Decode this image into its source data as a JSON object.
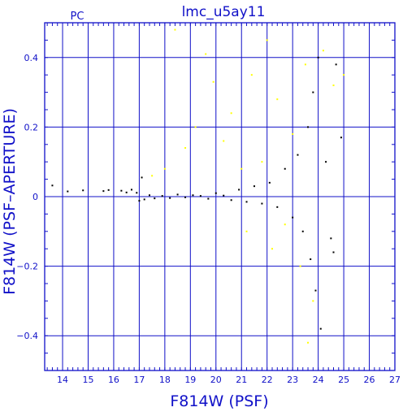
{
  "chart_data": {
    "type": "scatter",
    "title": "lmc_u5ay11",
    "corner_label": "PC",
    "xlabel": "F814W (PSF)",
    "ylabel": "F814W (PSF–APERTURE)",
    "xlim": [
      13.3,
      27
    ],
    "ylim": [
      -0.5,
      0.5
    ],
    "x_ticks": [
      "14",
      "15",
      "16",
      "17",
      "18",
      "19",
      "20",
      "21",
      "22",
      "23",
      "24",
      "25",
      "26",
      "27"
    ],
    "y_ticks": [
      "0.4",
      "0.2",
      "0",
      "−0.2",
      "−0.4"
    ],
    "grid": true,
    "colors": {
      "axes": "#1010c8",
      "black_points": "#000000",
      "yellow_points": "#ffff00"
    },
    "series": [
      {
        "color": "#000000",
        "points": [
          [
            13.6,
            0.032
          ],
          [
            14.2,
            0.015
          ],
          [
            14.8,
            0.018
          ],
          [
            15.6,
            0.016
          ],
          [
            15.8,
            0.019
          ],
          [
            16.3,
            0.017
          ],
          [
            16.5,
            0.012
          ],
          [
            16.7,
            0.02
          ],
          [
            16.9,
            0.011
          ],
          [
            17.0,
            -0.012
          ],
          [
            17.1,
            0.055
          ],
          [
            17.2,
            -0.008
          ],
          [
            17.4,
            0.004
          ],
          [
            17.6,
            -0.005
          ],
          [
            17.9,
            0.002
          ],
          [
            18.2,
            -0.004
          ],
          [
            18.5,
            0.006
          ],
          [
            18.8,
            -0.002
          ],
          [
            19.1,
            0.004
          ],
          [
            19.4,
            0.002
          ],
          [
            19.7,
            -0.006
          ],
          [
            20.0,
            0.01
          ],
          [
            20.3,
            0.003
          ],
          [
            20.6,
            -0.01
          ],
          [
            20.9,
            0.02
          ],
          [
            21.2,
            -0.015
          ],
          [
            21.5,
            0.03
          ],
          [
            21.8,
            -0.02
          ],
          [
            22.1,
            0.04
          ],
          [
            22.4,
            -0.03
          ],
          [
            22.7,
            0.08
          ],
          [
            23.0,
            -0.06
          ],
          [
            23.2,
            0.12
          ],
          [
            23.4,
            -0.1
          ],
          [
            23.6,
            0.2
          ],
          [
            23.7,
            -0.18
          ],
          [
            23.8,
            0.3
          ],
          [
            23.9,
            -0.27
          ],
          [
            24.0,
            0.4
          ],
          [
            24.1,
            -0.38
          ],
          [
            24.3,
            0.1
          ],
          [
            24.5,
            -0.12
          ],
          [
            24.7,
            0.38
          ],
          [
            24.9,
            0.17
          ],
          [
            24.6,
            -0.16
          ]
        ]
      },
      {
        "color": "#ffff00",
        "points": [
          [
            17.5,
            0.06
          ],
          [
            18.0,
            0.08
          ],
          [
            18.4,
            0.48
          ],
          [
            18.8,
            0.14
          ],
          [
            19.2,
            0.2
          ],
          [
            19.6,
            0.41
          ],
          [
            19.9,
            0.33
          ],
          [
            20.3,
            0.16
          ],
          [
            20.6,
            0.24
          ],
          [
            21.0,
            0.08
          ],
          [
            21.4,
            0.35
          ],
          [
            21.8,
            0.1
          ],
          [
            22.0,
            0.45
          ],
          [
            22.4,
            0.28
          ],
          [
            22.7,
            -0.08
          ],
          [
            23.0,
            0.18
          ],
          [
            23.3,
            -0.2
          ],
          [
            23.5,
            0.38
          ],
          [
            23.8,
            -0.3
          ],
          [
            24.2,
            0.42
          ],
          [
            24.6,
            0.32
          ],
          [
            25.0,
            0.35
          ],
          [
            21.2,
            -0.1
          ],
          [
            22.2,
            -0.15
          ],
          [
            23.6,
            -0.42
          ]
        ]
      }
    ]
  }
}
